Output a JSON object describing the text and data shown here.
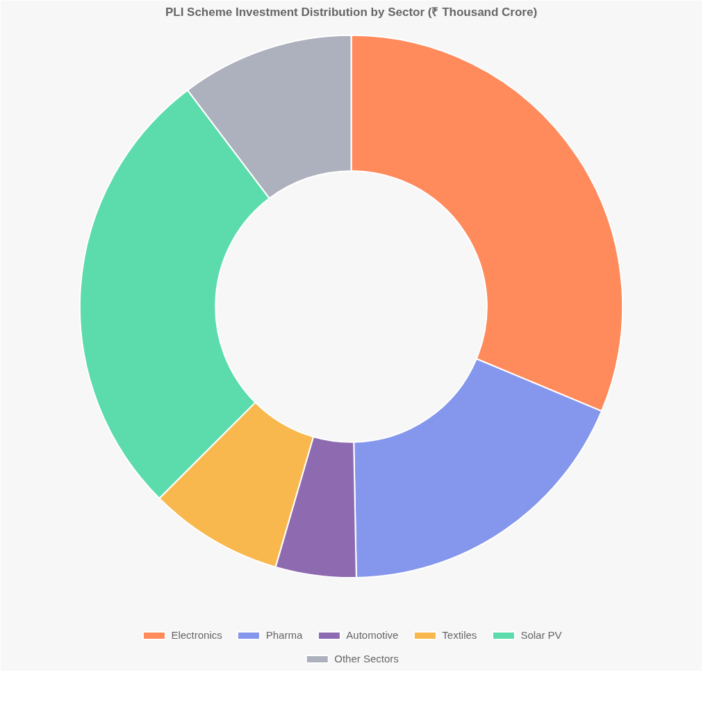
{
  "chart_data": {
    "type": "donut",
    "title": "PLI Scheme Investment Distribution by Sector (₹ Thousand Crore)",
    "categories": [
      "Electronics",
      "Pharma",
      "Automotive",
      "Textiles",
      "Solar PV",
      "Other Sectors"
    ],
    "values": [
      31.3,
      18.4,
      4.8,
      8.0,
      27.2,
      10.3
    ],
    "colors": [
      "#ff8a5b",
      "#8597ec",
      "#8e6bb1",
      "#f8b84e",
      "#5cdcac",
      "#adb1bd"
    ],
    "legend": "bottom"
  }
}
